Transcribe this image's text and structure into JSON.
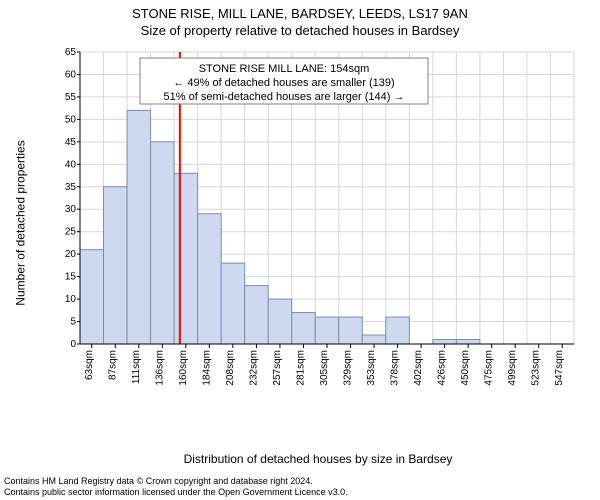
{
  "header": {
    "title_line1": "STONE RISE, MILL LANE, BARDSEY, LEEDS, LS17 9AN",
    "title_line2": "Size of property relative to detached houses in Bardsey"
  },
  "ylabel": "Number of detached properties",
  "xlabel": "Distribution of detached houses by size in Bardsey",
  "annotation": {
    "line1": "STONE RISE MILL LANE: 154sqm",
    "line2": "← 49% of detached houses are smaller (139)",
    "line3": "51% of semi-detached houses are larger (144) →",
    "box_stroke": "#808080",
    "box_fill": "#ffffff",
    "font_size": 11
  },
  "chart": {
    "type": "histogram",
    "background_color": "#ffffff",
    "grid_color": "#d7d7d7",
    "grid_line_width": 1,
    "axis_color": "#000000",
    "bar_fill": "#cdd9ef",
    "bar_stroke": "#7a8db8",
    "bar_stroke_width": 1,
    "marker_line_color": "#ff0000",
    "marker_line_width": 2,
    "marker_value": 154,
    "y": {
      "min": 0,
      "max": 65,
      "tick_step": 5,
      "ticks": [
        0,
        5,
        10,
        15,
        20,
        25,
        30,
        35,
        40,
        45,
        50,
        55,
        60,
        65
      ],
      "tick_font_size": 10
    },
    "x": {
      "bin_start": 50,
      "bin_width": 24.5,
      "labels": [
        "63sqm",
        "87sqm",
        "111sqm",
        "136sqm",
        "160sqm",
        "184sqm",
        "208sqm",
        "232sqm",
        "257sqm",
        "281sqm",
        "305sqm",
        "329sqm",
        "353sqm",
        "378sqm",
        "402sqm",
        "426sqm",
        "450sqm",
        "475sqm",
        "499sqm",
        "523sqm",
        "547sqm"
      ],
      "tick_font_size": 10
    },
    "values": [
      21,
      35,
      52,
      45,
      38,
      29,
      18,
      13,
      10,
      7,
      6,
      6,
      2,
      6,
      0,
      1,
      1,
      0,
      0,
      0,
      0
    ]
  },
  "footer": {
    "line1": "Contains HM Land Registry data © Crown copyright and database right 2024.",
    "line2": "Contains public sector information licensed under the Open Government Licence v3.0.",
    "font_size": 9,
    "color": "#000000"
  }
}
